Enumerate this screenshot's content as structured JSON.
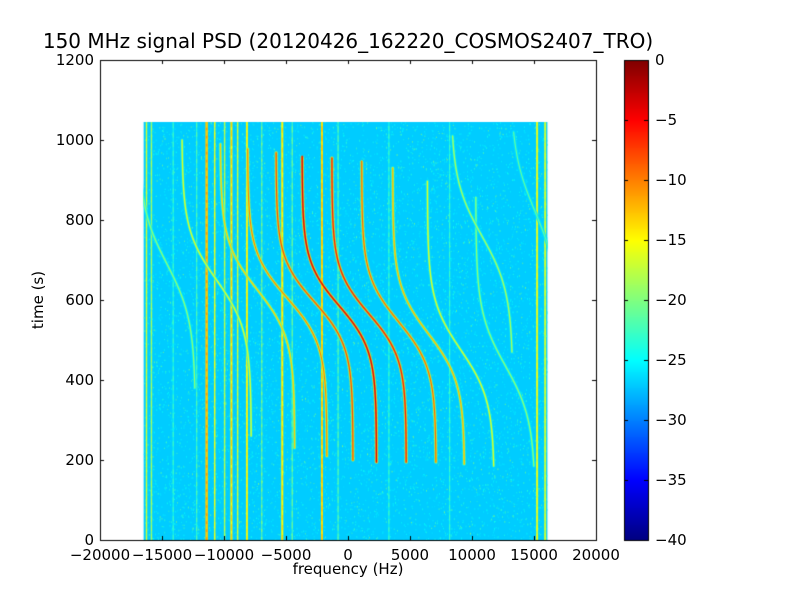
{
  "chart_data": {
    "type": "heatmap",
    "title": "150 MHz signal PSD (20120426_162220_COSMOS2407_TRO)",
    "xlabel": "frequency (Hz)",
    "ylabel": "time (s)",
    "xlim": [
      -20000,
      20000
    ],
    "ylim": [
      0,
      1200
    ],
    "x_ticks": [
      -20000,
      -15000,
      -10000,
      -5000,
      0,
      5000,
      10000,
      15000,
      20000
    ],
    "x_tick_labels": [
      "−20000",
      "−15000",
      "−10000",
      "−5000",
      "0",
      "5000",
      "10000",
      "15000",
      "20000"
    ],
    "y_ticks": [
      0,
      200,
      400,
      600,
      800,
      1000,
      1200
    ],
    "y_tick_labels": [
      "0",
      "200",
      "400",
      "600",
      "800",
      "1000",
      "1200"
    ],
    "colormap": "jet",
    "grid": false,
    "colorbar": {
      "vmin": -40,
      "vmax": 0,
      "ticks": [
        0,
        -5,
        -10,
        -15,
        -20,
        -25,
        -30,
        -35,
        -40
      ],
      "tick_labels": [
        "0",
        "−5",
        "−10",
        "−15",
        "−20",
        "−25",
        "−30",
        "−35",
        "−40"
      ],
      "position": "right"
    },
    "data_extent": {
      "freq_min": -16500,
      "freq_max": 16100,
      "time_min": 0,
      "time_max": 1045
    },
    "background_level_db": -27,
    "vertical_lines": [
      {
        "freq": -16250,
        "level_db": -18,
        "width": 1.5
      },
      {
        "freq": -15850,
        "level_db": -20,
        "width": 1.5
      },
      {
        "freq": -14100,
        "level_db": -24,
        "width": 1
      },
      {
        "freq": -12200,
        "level_db": -23,
        "width": 1
      },
      {
        "freq": -11400,
        "level_db": -13,
        "width": 2.5
      },
      {
        "freq": -10750,
        "level_db": -17,
        "width": 1.5
      },
      {
        "freq": -9950,
        "level_db": -19,
        "width": 1.5
      },
      {
        "freq": -9400,
        "level_db": -15,
        "width": 2
      },
      {
        "freq": -8900,
        "level_db": -18,
        "width": 1.5
      },
      {
        "freq": -8150,
        "level_db": -16,
        "width": 2
      },
      {
        "freq": -6950,
        "level_db": -21,
        "width": 1
      },
      {
        "freq": -5300,
        "level_db": -15,
        "width": 2
      },
      {
        "freq": -4500,
        "level_db": -22,
        "width": 1
      },
      {
        "freq": -2100,
        "level_db": -14,
        "width": 2
      },
      {
        "freq": -800,
        "level_db": -23,
        "width": 1
      },
      {
        "freq": 3300,
        "level_db": -24,
        "width": 1
      },
      {
        "freq": 8200,
        "level_db": -24,
        "width": 1
      },
      {
        "freq": 15250,
        "level_db": -17,
        "width": 2
      },
      {
        "freq": 15900,
        "level_db": -18,
        "width": 2
      }
    ],
    "doppler_curves": [
      {
        "f0": -14600,
        "amp": 2300,
        "t0": 690,
        "tau": 140,
        "t1": 380,
        "t2": 1010,
        "peak_db": -19
      },
      {
        "f0": -10600,
        "amp": 2800,
        "t0": 650,
        "tau": 125,
        "t1": 260,
        "t2": 1000,
        "peak_db": -16
      },
      {
        "f0": -7300,
        "amp": 3000,
        "t0": 625,
        "tau": 120,
        "t1": 230,
        "t2": 990,
        "peak_db": -13
      },
      {
        "f0": -4900,
        "amp": 3200,
        "t0": 605,
        "tau": 115,
        "t1": 210,
        "t2": 980,
        "peak_db": -10
      },
      {
        "f0": -2700,
        "amp": 3100,
        "t0": 595,
        "tau": 110,
        "t1": 200,
        "t2": 970,
        "peak_db": -8
      },
      {
        "f0": -700,
        "amp": 3000,
        "t0": 585,
        "tau": 110,
        "t1": 195,
        "t2": 960,
        "peak_db": -4
      },
      {
        "f0": 1700,
        "amp": 3000,
        "t0": 565,
        "tau": 110,
        "t1": 195,
        "t2": 955,
        "peak_db": -6
      },
      {
        "f0": 4100,
        "amp": 3000,
        "t0": 545,
        "tau": 115,
        "t1": 195,
        "t2": 950,
        "peak_db": -9
      },
      {
        "f0": 6500,
        "amp": 2900,
        "t0": 515,
        "tau": 120,
        "t1": 190,
        "t2": 930,
        "peak_db": -12
      },
      {
        "f0": 9100,
        "amp": 2700,
        "t0": 475,
        "tau": 125,
        "t1": 185,
        "t2": 900,
        "peak_db": -16
      },
      {
        "f0": 12700,
        "amp": 2400,
        "t0": 435,
        "tau": 135,
        "t1": 185,
        "t2": 860,
        "peak_db": -19
      },
      {
        "f0": 10800,
        "amp": 2500,
        "t0": 760,
        "tau": 140,
        "t1": 470,
        "t2": 1010,
        "peak_db": -18
      },
      {
        "f0": 15100,
        "amp": 2000,
        "t0": 820,
        "tau": 150,
        "t1": 520,
        "t2": 1020,
        "peak_db": -21
      }
    ],
    "colors": {
      "figure_background": "#ffffff",
      "axis": "#000000",
      "plot_background_approx": "#00ccff"
    }
  }
}
